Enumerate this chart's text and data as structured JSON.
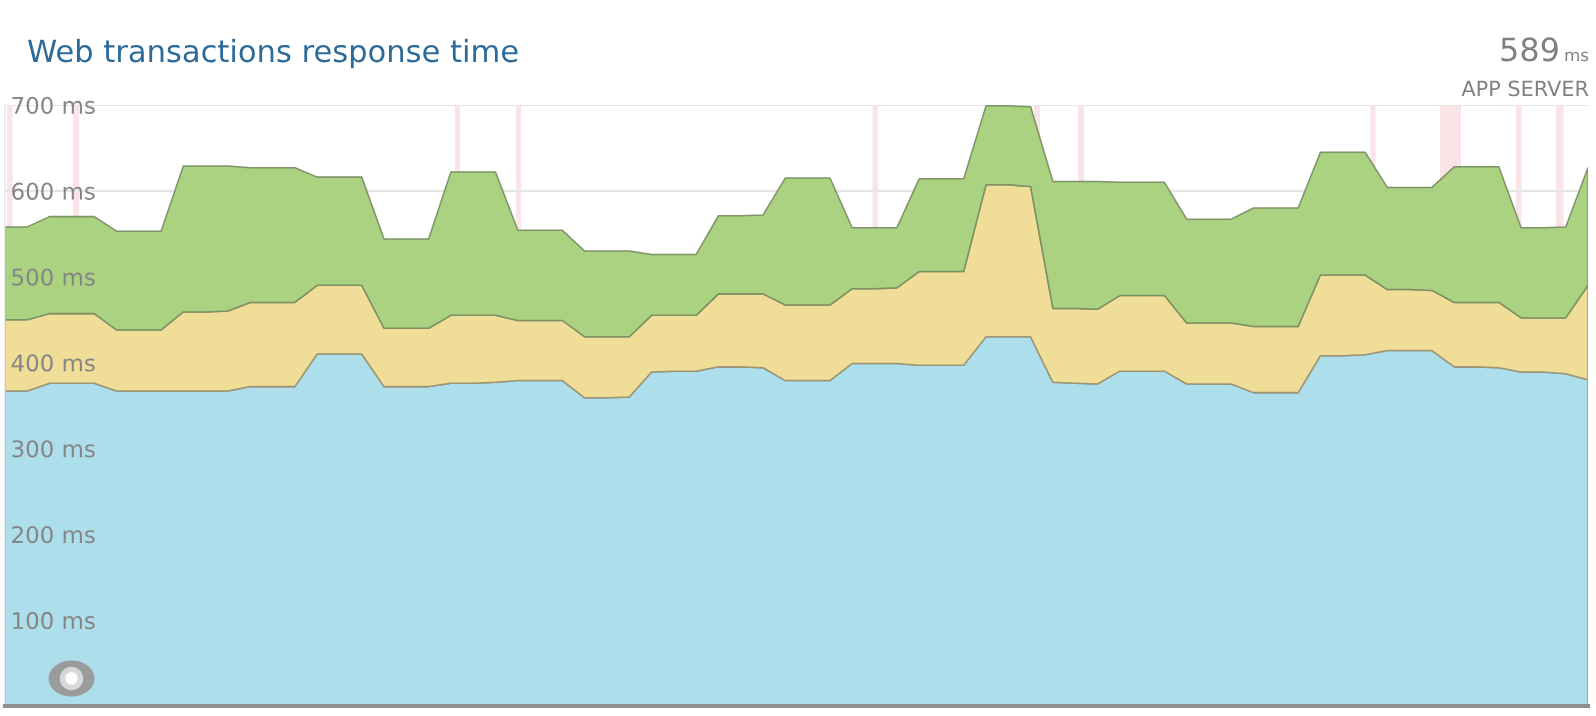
{
  "chart_data": {
    "type": "area",
    "stacked": true,
    "title": "Web transactions response time",
    "annotations": [
      "589",
      "ms",
      "APP SERVER"
    ],
    "categories": [
      null,
      null,
      null,
      null,
      null,
      null,
      null,
      null,
      null,
      null,
      null,
      null,
      null,
      null,
      null,
      null,
      null,
      null,
      null,
      null,
      null,
      null,
      null,
      null,
      null,
      null,
      null,
      null,
      null,
      null,
      null,
      null,
      null,
      null,
      null,
      null,
      null,
      null,
      null,
      null,
      null,
      null,
      null,
      null,
      null,
      null,
      null,
      null,
      null,
      null,
      null,
      null,
      null,
      null,
      null,
      null,
      null,
      null,
      null,
      null,
      null,
      null,
      null,
      null,
      null,
      null,
      null,
      null,
      null,
      null,
      null,
      null
    ],
    "series": [
      {
        "color": "#a9dcea",
        "values": [
          367,
          367,
          376,
          376,
          376,
          367,
          367,
          367,
          367,
          367,
          367,
          372,
          372,
          372,
          410,
          410,
          410,
          372,
          372,
          372,
          376,
          376,
          377,
          379,
          379,
          379,
          359,
          359,
          360,
          389,
          390,
          390,
          395,
          395,
          394,
          379,
          379,
          379,
          399,
          399,
          399,
          397,
          397,
          397,
          430,
          430,
          430,
          377,
          376,
          375,
          390,
          390,
          390,
          375,
          375,
          375,
          365,
          365,
          365,
          408,
          408,
          409,
          414,
          414,
          414,
          395,
          395,
          394,
          389,
          389,
          387,
          380
        ]
      },
      {
        "color": "#efdc92",
        "values": [
          83,
          83,
          81,
          81,
          81,
          71,
          71,
          71,
          92,
          92,
          93,
          98,
          98,
          98,
          80,
          80,
          80,
          68,
          68,
          68,
          79,
          79,
          78,
          70,
          70,
          70,
          71,
          71,
          70,
          66,
          65,
          65,
          85,
          85,
          86,
          88,
          88,
          88,
          87,
          87,
          88,
          109,
          109,
          109,
          177,
          177,
          175,
          86,
          87,
          87,
          88,
          88,
          88,
          71,
          71,
          71,
          77,
          77,
          77,
          94,
          94,
          93,
          71,
          71,
          70,
          75,
          75,
          76,
          63,
          63,
          65,
          110
        ]
      },
      {
        "color": "#a5d079",
        "values": [
          108,
          108,
          113,
          113,
          113,
          115,
          115,
          115,
          170,
          170,
          169,
          157,
          157,
          157,
          126,
          126,
          126,
          104,
          104,
          104,
          167,
          167,
          167,
          105,
          105,
          105,
          100,
          100,
          100,
          71,
          71,
          71,
          91,
          91,
          92,
          148,
          148,
          148,
          71,
          71,
          70,
          108,
          108,
          108,
          92,
          92,
          93,
          148,
          148,
          149,
          132,
          132,
          132,
          121,
          121,
          121,
          138,
          138,
          138,
          143,
          143,
          143,
          119,
          119,
          120,
          158,
          158,
          158,
          105,
          105,
          106,
          137
        ]
      }
    ],
    "ylim": [
      0,
      700
    ],
    "yticks": [
      {
        "value": 100,
        "label": "100 ms"
      },
      {
        "value": 200,
        "label": "200 ms"
      },
      {
        "value": 300,
        "label": "300 ms"
      },
      {
        "value": 400,
        "label": "400 ms"
      },
      {
        "value": 500,
        "label": "500 ms"
      },
      {
        "value": 600,
        "label": "600 ms"
      },
      {
        "value": 700,
        "label": "700 ms"
      }
    ],
    "tick_labels": "y",
    "grid": "y"
  }
}
